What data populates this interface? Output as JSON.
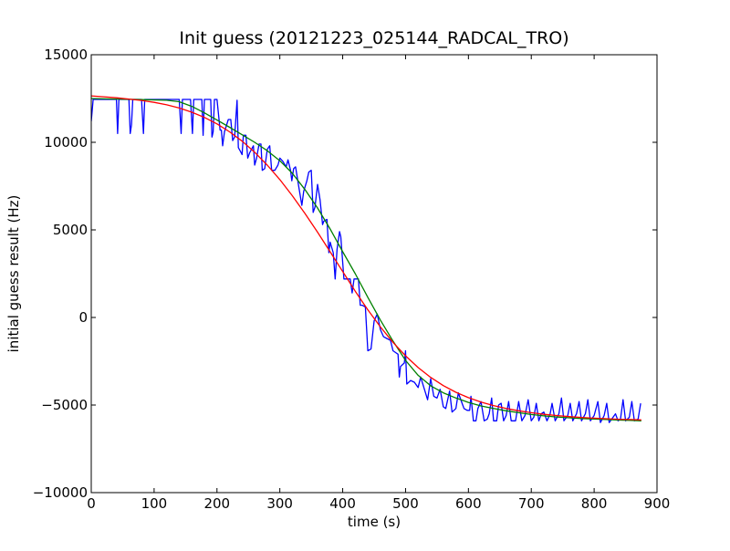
{
  "chart_data": {
    "type": "line",
    "title": "Init guess (20121223_025144_RADCAL_TRO)",
    "xlabel": "time (s)",
    "ylabel": "initial guess result (Hz)",
    "xlim": [
      0,
      900
    ],
    "ylim": [
      -10000,
      15000
    ],
    "xticks": [
      0,
      100,
      200,
      300,
      400,
      500,
      600,
      700,
      800,
      900
    ],
    "yticks": [
      -10000,
      -5000,
      0,
      5000,
      10000,
      15000
    ],
    "xtick_labels": [
      "0",
      "100",
      "200",
      "300",
      "400",
      "500",
      "600",
      "700",
      "800",
      "900"
    ],
    "ytick_labels": [
      "−10000",
      "−5000",
      "0",
      "5000",
      "10000",
      "15000"
    ],
    "grid": false,
    "legend": "none",
    "series": [
      {
        "color": "#0000ff",
        "points": [
          [
            0,
            11200
          ],
          [
            3,
            12450
          ],
          [
            40,
            12450
          ],
          [
            42,
            10500
          ],
          [
            44,
            12450
          ],
          [
            60,
            12450
          ],
          [
            62,
            10500
          ],
          [
            64,
            11000
          ],
          [
            66,
            12450
          ],
          [
            80,
            12450
          ],
          [
            83,
            10500
          ],
          [
            85,
            12450
          ],
          [
            140,
            12450
          ],
          [
            143,
            10500
          ],
          [
            145,
            12450
          ],
          [
            158,
            12450
          ],
          [
            161,
            10500
          ],
          [
            163,
            12450
          ],
          [
            176,
            12450
          ],
          [
            178,
            10400
          ],
          [
            180,
            12450
          ],
          [
            190,
            12450
          ],
          [
            192,
            10300
          ],
          [
            194,
            10600
          ],
          [
            196,
            12450
          ],
          [
            200,
            12450
          ],
          [
            205,
            10700
          ],
          [
            207,
            10700
          ],
          [
            209,
            9800
          ],
          [
            212,
            10600
          ],
          [
            218,
            11300
          ],
          [
            222,
            11300
          ],
          [
            225,
            10100
          ],
          [
            228,
            10300
          ],
          [
            232,
            12400
          ],
          [
            234,
            9700
          ],
          [
            237,
            9500
          ],
          [
            240,
            9300
          ],
          [
            242,
            10400
          ],
          [
            246,
            10400
          ],
          [
            249,
            9100
          ],
          [
            252,
            9400
          ],
          [
            258,
            9800
          ],
          [
            260,
            8700
          ],
          [
            263,
            9100
          ],
          [
            267,
            9900
          ],
          [
            270,
            9900
          ],
          [
            272,
            8400
          ],
          [
            276,
            8500
          ],
          [
            280,
            9600
          ],
          [
            284,
            9800
          ],
          [
            287,
            8400
          ],
          [
            292,
            8400
          ],
          [
            297,
            8700
          ],
          [
            300,
            9100
          ],
          [
            305,
            8900
          ],
          [
            310,
            8600
          ],
          [
            313,
            9000
          ],
          [
            317,
            8400
          ],
          [
            319,
            7800
          ],
          [
            322,
            8500
          ],
          [
            325,
            8600
          ],
          [
            330,
            7500
          ],
          [
            335,
            6400
          ],
          [
            338,
            7200
          ],
          [
            343,
            7800
          ],
          [
            346,
            8300
          ],
          [
            350,
            8400
          ],
          [
            353,
            6000
          ],
          [
            356,
            6300
          ],
          [
            360,
            7600
          ],
          [
            364,
            6700
          ],
          [
            368,
            5300
          ],
          [
            370,
            5500
          ],
          [
            375,
            5600
          ],
          [
            378,
            3700
          ],
          [
            380,
            4300
          ],
          [
            385,
            3700
          ],
          [
            388,
            2200
          ],
          [
            391,
            3900
          ],
          [
            395,
            4900
          ],
          [
            397,
            4600
          ],
          [
            402,
            2200
          ],
          [
            412,
            2200
          ],
          [
            415,
            1400
          ],
          [
            418,
            2200
          ],
          [
            425,
            2200
          ],
          [
            428,
            700
          ],
          [
            431,
            700
          ],
          [
            436,
            600
          ],
          [
            440,
            -1900
          ],
          [
            445,
            -1800
          ],
          [
            450,
            -200
          ],
          [
            455,
            200
          ],
          [
            460,
            -700
          ],
          [
            465,
            -1100
          ],
          [
            470,
            -1200
          ],
          [
            476,
            -1300
          ],
          [
            480,
            -1900
          ],
          [
            484,
            -2000
          ],
          [
            488,
            -2100
          ],
          [
            490,
            -3400
          ],
          [
            492,
            -2800
          ],
          [
            498,
            -2600
          ],
          [
            500,
            -1900
          ],
          [
            502,
            -3800
          ],
          [
            508,
            -3600
          ],
          [
            514,
            -3700
          ],
          [
            520,
            -4000
          ],
          [
            524,
            -3400
          ],
          [
            530,
            -4100
          ],
          [
            535,
            -4700
          ],
          [
            540,
            -3500
          ],
          [
            545,
            -4500
          ],
          [
            550,
            -4600
          ],
          [
            555,
            -4100
          ],
          [
            560,
            -5100
          ],
          [
            564,
            -5200
          ],
          [
            570,
            -4200
          ],
          [
            574,
            -5400
          ],
          [
            580,
            -5200
          ],
          [
            584,
            -4300
          ],
          [
            590,
            -4900
          ],
          [
            593,
            -5200
          ],
          [
            598,
            -5300
          ],
          [
            602,
            -5300
          ],
          [
            604,
            -4500
          ],
          [
            608,
            -5900
          ],
          [
            612,
            -5900
          ],
          [
            615,
            -5200
          ],
          [
            620,
            -4800
          ],
          [
            625,
            -5900
          ],
          [
            630,
            -5800
          ],
          [
            633,
            -5500
          ],
          [
            637,
            -4600
          ],
          [
            640,
            -5900
          ],
          [
            645,
            -5900
          ],
          [
            648,
            -5000
          ],
          [
            652,
            -4900
          ],
          [
            656,
            -5900
          ],
          [
            660,
            -5600
          ],
          [
            664,
            -4800
          ],
          [
            668,
            -5900
          ],
          [
            675,
            -5900
          ],
          [
            680,
            -4800
          ],
          [
            685,
            -5900
          ],
          [
            690,
            -5600
          ],
          [
            695,
            -4700
          ],
          [
            700,
            -5900
          ],
          [
            704,
            -5700
          ],
          [
            708,
            -4900
          ],
          [
            712,
            -5900
          ],
          [
            716,
            -5500
          ],
          [
            720,
            -5400
          ],
          [
            725,
            -5900
          ],
          [
            730,
            -5500
          ],
          [
            733,
            -4900
          ],
          [
            738,
            -5900
          ],
          [
            744,
            -5500
          ],
          [
            748,
            -4600
          ],
          [
            752,
            -5900
          ],
          [
            758,
            -5600
          ],
          [
            762,
            -4900
          ],
          [
            766,
            -5900
          ],
          [
            772,
            -5500
          ],
          [
            776,
            -4800
          ],
          [
            780,
            -5900
          ],
          [
            786,
            -5500
          ],
          [
            790,
            -4700
          ],
          [
            794,
            -5900
          ],
          [
            800,
            -5600
          ],
          [
            806,
            -4800
          ],
          [
            810,
            -6000
          ],
          [
            816,
            -5600
          ],
          [
            820,
            -4900
          ],
          [
            824,
            -6000
          ],
          [
            828,
            -5800
          ],
          [
            834,
            -5500
          ],
          [
            838,
            -5900
          ],
          [
            842,
            -5800
          ],
          [
            846,
            -4700
          ],
          [
            850,
            -5900
          ],
          [
            856,
            -5700
          ],
          [
            860,
            -4800
          ],
          [
            864,
            -5900
          ],
          [
            870,
            -5800
          ],
          [
            874,
            -4900
          ]
        ]
      },
      {
        "color": "#008000",
        "points": [
          [
            0,
            12500
          ],
          [
            40,
            12470
          ],
          [
            80,
            12440
          ],
          [
            120,
            12400
          ],
          [
            140,
            12320
          ],
          [
            160,
            12050
          ],
          [
            180,
            11680
          ],
          [
            200,
            11270
          ],
          [
            220,
            10860
          ],
          [
            240,
            10430
          ],
          [
            260,
            10000
          ],
          [
            280,
            9520
          ],
          [
            300,
            8950
          ],
          [
            320,
            8230
          ],
          [
            340,
            7300
          ],
          [
            360,
            6250
          ],
          [
            380,
            5050
          ],
          [
            400,
            3750
          ],
          [
            420,
            2500
          ],
          [
            440,
            1150
          ],
          [
            460,
            -150
          ],
          [
            480,
            -1350
          ],
          [
            500,
            -2450
          ],
          [
            520,
            -3300
          ],
          [
            540,
            -3900
          ],
          [
            560,
            -4300
          ],
          [
            580,
            -4600
          ],
          [
            600,
            -4850
          ],
          [
            620,
            -5050
          ],
          [
            640,
            -5200
          ],
          [
            660,
            -5330
          ],
          [
            680,
            -5440
          ],
          [
            700,
            -5540
          ],
          [
            720,
            -5620
          ],
          [
            740,
            -5680
          ],
          [
            760,
            -5730
          ],
          [
            780,
            -5770
          ],
          [
            800,
            -5800
          ],
          [
            820,
            -5830
          ],
          [
            840,
            -5860
          ],
          [
            860,
            -5880
          ],
          [
            875,
            -5900
          ]
        ]
      },
      {
        "color": "#ff0000",
        "points": [
          [
            0,
            12650
          ],
          [
            20,
            12600
          ],
          [
            40,
            12540
          ],
          [
            60,
            12470
          ],
          [
            80,
            12390
          ],
          [
            100,
            12280
          ],
          [
            120,
            12140
          ],
          [
            140,
            11960
          ],
          [
            160,
            11720
          ],
          [
            180,
            11420
          ],
          [
            200,
            11050
          ],
          [
            220,
            10600
          ],
          [
            240,
            10070
          ],
          [
            260,
            9430
          ],
          [
            280,
            8700
          ],
          [
            300,
            7870
          ],
          [
            320,
            6950
          ],
          [
            340,
            5940
          ],
          [
            360,
            4870
          ],
          [
            380,
            3750
          ],
          [
            400,
            2620
          ],
          [
            420,
            1500
          ],
          [
            440,
            440
          ],
          [
            460,
            -540
          ],
          [
            480,
            -1420
          ],
          [
            500,
            -2190
          ],
          [
            520,
            -2860
          ],
          [
            540,
            -3420
          ],
          [
            560,
            -3890
          ],
          [
            580,
            -4270
          ],
          [
            600,
            -4580
          ],
          [
            620,
            -4830
          ],
          [
            640,
            -5030
          ],
          [
            660,
            -5200
          ],
          [
            680,
            -5330
          ],
          [
            700,
            -5440
          ],
          [
            720,
            -5530
          ],
          [
            740,
            -5600
          ],
          [
            760,
            -5660
          ],
          [
            780,
            -5710
          ],
          [
            800,
            -5750
          ],
          [
            820,
            -5780
          ],
          [
            840,
            -5810
          ],
          [
            860,
            -5830
          ],
          [
            875,
            -5850
          ]
        ]
      }
    ]
  }
}
